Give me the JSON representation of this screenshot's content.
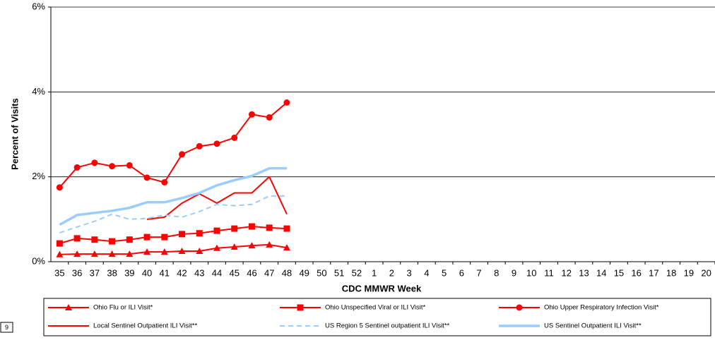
{
  "chart_data": {
    "type": "line",
    "y_axis_label": "Percent of Visits",
    "x_axis_label": "CDC MMWR Week",
    "categories": [
      "35",
      "36",
      "37",
      "38",
      "39",
      "40",
      "41",
      "42",
      "43",
      "44",
      "45",
      "46",
      "47",
      "48",
      "49",
      "50",
      "51",
      "52",
      "1",
      "2",
      "3",
      "4",
      "5",
      "6",
      "7",
      "8",
      "9",
      "10",
      "11",
      "12",
      "13",
      "14",
      "15",
      "16",
      "17",
      "18",
      "19",
      "20"
    ],
    "ylim": [
      0,
      6
    ],
    "yticks": [
      {
        "value": 0,
        "label": "0%"
      },
      {
        "value": 2,
        "label": "2%"
      },
      {
        "value": 4,
        "label": "4%"
      },
      {
        "value": 6,
        "label": "6%"
      }
    ],
    "grid": true,
    "series": [
      {
        "name": "Ohio Flu or ILI Visit*",
        "color": "#ff0000",
        "marker": "triangle",
        "style": "solid",
        "values": [
          0.17,
          0.18,
          0.18,
          0.18,
          0.18,
          0.23,
          0.23,
          0.25,
          0.25,
          0.32,
          0.35,
          0.38,
          0.4,
          0.33,
          null,
          null,
          null,
          null,
          null,
          null,
          null,
          null,
          null,
          null,
          null,
          null,
          null,
          null,
          null,
          null,
          null,
          null,
          null,
          null,
          null,
          null,
          null,
          null
        ]
      },
      {
        "name": "Ohio Unspecified Viral or ILI Visit*",
        "color": "#ff0000",
        "marker": "square",
        "style": "solid",
        "values": [
          0.43,
          0.55,
          0.52,
          0.48,
          0.52,
          0.58,
          0.58,
          0.65,
          0.67,
          0.73,
          0.78,
          0.83,
          0.8,
          0.78,
          null,
          null,
          null,
          null,
          null,
          null,
          null,
          null,
          null,
          null,
          null,
          null,
          null,
          null,
          null,
          null,
          null,
          null,
          null,
          null,
          null,
          null,
          null,
          null
        ]
      },
      {
        "name": "Ohio Upper Respiratory Infection Visit*",
        "color": "#ff0000",
        "marker": "circle",
        "style": "solid",
        "values": [
          1.75,
          2.22,
          2.33,
          2.25,
          2.27,
          1.98,
          1.87,
          2.53,
          2.72,
          2.78,
          2.92,
          3.47,
          3.4,
          3.75,
          null,
          null,
          null,
          null,
          null,
          null,
          null,
          null,
          null,
          null,
          null,
          null,
          null,
          null,
          null,
          null,
          null,
          null,
          null,
          null,
          null,
          null,
          null,
          null
        ]
      },
      {
        "name": "Local Sentinel Outpatient ILI Visit**",
        "color": "#ff0000",
        "marker": "none",
        "style": "solid",
        "values": [
          null,
          null,
          null,
          null,
          null,
          1.0,
          1.05,
          1.38,
          1.6,
          1.38,
          1.62,
          1.62,
          2.0,
          1.12,
          null,
          null,
          null,
          null,
          null,
          null,
          null,
          null,
          null,
          null,
          null,
          null,
          null,
          null,
          null,
          null,
          null,
          null,
          null,
          null,
          null,
          null,
          null,
          null
        ]
      },
      {
        "name": "US Region 5 Sentinel outpatient ILI Visit**",
        "color": "#99ccff",
        "marker": "none",
        "style": "dashed",
        "values": [
          0.68,
          0.82,
          0.95,
          1.12,
          1.0,
          1.02,
          1.1,
          1.05,
          1.18,
          1.35,
          1.32,
          1.35,
          1.55,
          1.55,
          null,
          null,
          null,
          null,
          null,
          null,
          null,
          null,
          null,
          null,
          null,
          null,
          null,
          null,
          null,
          null,
          null,
          null,
          null,
          null,
          null,
          null,
          null,
          null
        ]
      },
      {
        "name": "US Sentinel Outpatient ILI Visit**",
        "color": "#99ccff",
        "marker": "none",
        "style": "thick",
        "values": [
          0.87,
          1.1,
          1.15,
          1.2,
          1.27,
          1.4,
          1.4,
          1.5,
          1.62,
          1.8,
          1.92,
          2.02,
          2.2,
          2.2,
          null,
          null,
          null,
          null,
          null,
          null,
          null,
          null,
          null,
          null,
          null,
          null,
          null,
          null,
          null,
          null,
          null,
          null,
          null,
          null,
          null,
          null,
          null,
          null
        ]
      }
    ]
  },
  "page_marker": "9"
}
